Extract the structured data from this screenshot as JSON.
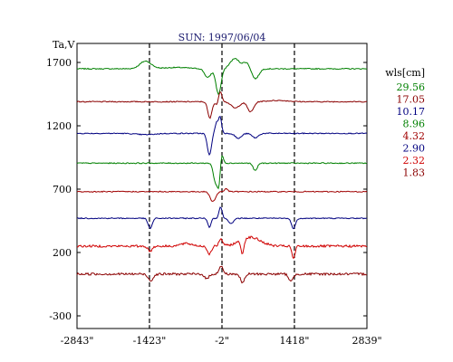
{
  "chart_data": {
    "type": "line",
    "title": "SUN: 1997/06/04",
    "ylabel": "Ta,V",
    "xlabel": "",
    "x_ticks": [
      "-2843\"",
      "-1423\"",
      "-2\"",
      "1418\"",
      "2839\""
    ],
    "x_tick_values": [
      -2843,
      -1423,
      -2,
      1418,
      2839
    ],
    "y_ticks": [
      "1700",
      "1200",
      "700",
      "200",
      "-300"
    ],
    "y_tick_values": [
      1700,
      1200,
      700,
      200,
      -300
    ],
    "xlim": [
      -2843,
      2839
    ],
    "ylim": [
      -400,
      1850
    ],
    "vlines": [
      -1423,
      -2,
      1418
    ],
    "legend": {
      "title": "wls[cm]",
      "placement": "right"
    },
    "series": [
      {
        "name": "29.56",
        "color": "#008000",
        "baseline": 1650,
        "features": [
          [
            -1500,
            60,
            110
          ],
          [
            -900,
            10,
            250
          ],
          [
            -280,
            -70,
            60
          ],
          [
            -70,
            -200,
            50
          ],
          [
            250,
            80,
            90
          ],
          [
            480,
            50,
            70
          ],
          [
            650,
            -80,
            70
          ]
        ]
      },
      {
        "name": "17.05",
        "color": "#8b0000",
        "baseline": 1390,
        "features": [
          [
            -240,
            -130,
            40
          ],
          [
            -90,
            -40,
            30
          ],
          [
            -40,
            90,
            35
          ],
          [
            260,
            -50,
            80
          ],
          [
            560,
            -80,
            60
          ],
          [
            1100,
            10,
            200
          ]
        ]
      },
      {
        "name": "10.17",
        "color": "#000080",
        "baseline": 1140,
        "features": [
          [
            -1500,
            -10,
            180
          ],
          [
            -250,
            -170,
            40
          ],
          [
            -110,
            80,
            30
          ],
          [
            -40,
            130,
            30
          ],
          [
            320,
            -40,
            60
          ],
          [
            650,
            -35,
            60
          ]
        ]
      },
      {
        "name": "8.96",
        "color": "#008000",
        "baseline": 905,
        "features": [
          [
            -130,
            -150,
            40
          ],
          [
            -60,
            -170,
            30
          ],
          [
            -10,
            90,
            30
          ],
          [
            650,
            -60,
            40
          ]
        ]
      },
      {
        "name": "4.32",
        "color": "#a00000",
        "baseline": 680,
        "features": [
          [
            -200,
            -60,
            45
          ],
          [
            -140,
            -35,
            40
          ],
          [
            80,
            25,
            30
          ]
        ]
      },
      {
        "name": "2.90",
        "color": "#000080",
        "baseline": 470,
        "features": [
          [
            -1410,
            -80,
            40
          ],
          [
            -250,
            -70,
            30
          ],
          [
            -30,
            90,
            30
          ],
          [
            180,
            -40,
            50
          ],
          [
            1400,
            -80,
            40
          ]
        ]
      },
      {
        "name": "2.32",
        "color": "#d00000",
        "baseline": 250,
        "features": [
          [
            -1410,
            -40,
            40
          ],
          [
            -700,
            20,
            120
          ],
          [
            -250,
            -60,
            40
          ],
          [
            -20,
            50,
            40
          ],
          [
            400,
            -110,
            30
          ],
          [
            550,
            70,
            200
          ],
          [
            1400,
            -100,
            30
          ]
        ]
      },
      {
        "name": "1.83",
        "color": "#8b0000",
        "baseline": 30,
        "features": [
          [
            -1400,
            -50,
            50
          ],
          [
            -300,
            -40,
            40
          ],
          [
            -20,
            60,
            40
          ],
          [
            400,
            -70,
            40
          ],
          [
            1350,
            -60,
            40
          ]
        ]
      }
    ]
  }
}
